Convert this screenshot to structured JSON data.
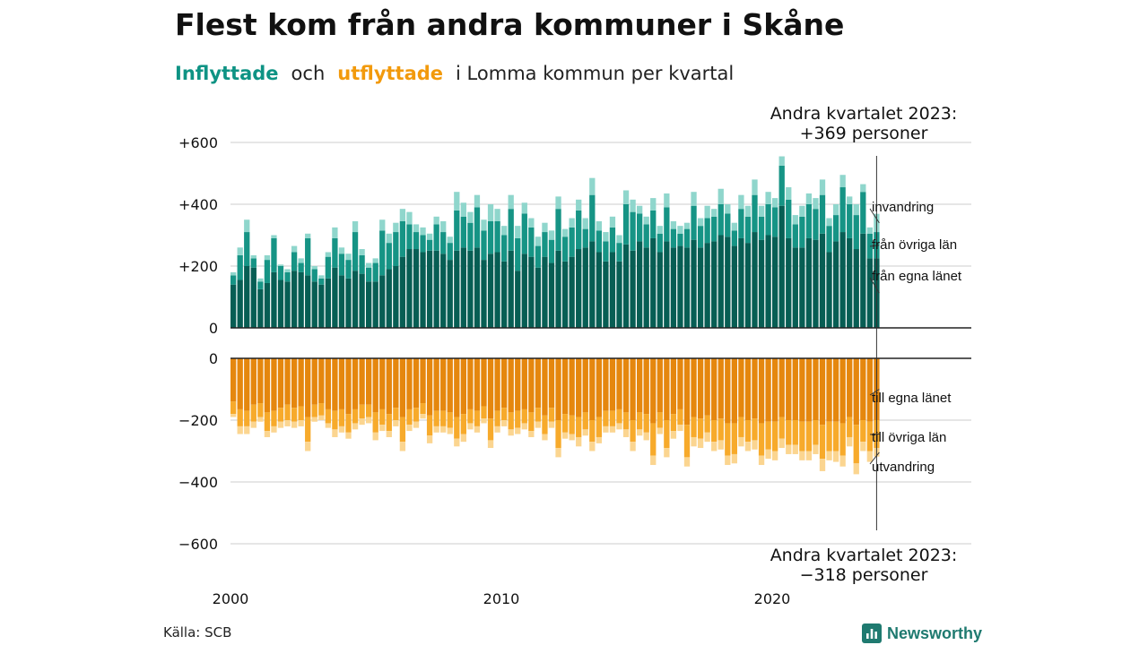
{
  "title": "Flest kom från andra kommuner i Skåne",
  "subtitle": {
    "part1": "Inflyttade",
    "part2": "och",
    "part3": "utflyttade",
    "part4": "i Lomma kommun per kvartal"
  },
  "source": "Källa: SCB",
  "brand": {
    "name": "Newsworthy"
  },
  "colors": {
    "in_own": "#075e54",
    "in_other": "#169485",
    "in_immig": "#8fd6cc",
    "out_own": "#e5870e",
    "out_other": "#f7aa2b",
    "out_emig": "#fbd590",
    "grid": "#dddddd",
    "axis": "#222222"
  },
  "chart_data": {
    "type": "bar",
    "stacked": true,
    "period": "quarter",
    "start": "2000 Q1",
    "end": "2023 Q2",
    "x_ticks": [
      "2000",
      "2010",
      "2020"
    ],
    "panels": [
      {
        "name": "inflyttade",
        "y_ticks": [
          "0",
          "+200",
          "+400",
          "+600"
        ],
        "ylim": [
          0,
          600
        ],
        "segment_labels": [
          "invandring",
          "från övriga län",
          "från egna länet"
        ],
        "callout": [
          "Andra kvartalet 2023:",
          "+369 personer"
        ],
        "totals": [
          180,
          260,
          350,
          235,
          160,
          235,
          300,
          205,
          190,
          265,
          225,
          305,
          200,
          170,
          245,
          325,
          260,
          240,
          345,
          255,
          210,
          225,
          350,
          305,
          340,
          385,
          375,
          335,
          325,
          305,
          360,
          345,
          295,
          440,
          405,
          375,
          430,
          350,
          400,
          385,
          330,
          430,
          330,
          405,
          355,
          295,
          340,
          315,
          425,
          320,
          355,
          415,
          355,
          485,
          345,
          310,
          360,
          300,
          445,
          415,
          395,
          360,
          420,
          330,
          435,
          345,
          330,
          340,
          440,
          355,
          395,
          385,
          450,
          400,
          340,
          430,
          395,
          480,
          395,
          440,
          420,
          555,
          455,
          365,
          395,
          435,
          420,
          480,
          355,
          400,
          495,
          425,
          400,
          465,
          325,
          369
        ],
        "from_own_county": [
          140,
          155,
          200,
          195,
          125,
          145,
          180,
          155,
          150,
          185,
          180,
          170,
          150,
          140,
          160,
          195,
          170,
          160,
          185,
          175,
          150,
          150,
          170,
          190,
          200,
          230,
          255,
          255,
          245,
          250,
          250,
          240,
          220,
          250,
          260,
          250,
          260,
          220,
          240,
          245,
          215,
          250,
          185,
          240,
          230,
          195,
          230,
          210,
          250,
          215,
          230,
          255,
          260,
          280,
          245,
          215,
          245,
          215,
          270,
          250,
          280,
          260,
          290,
          245,
          280,
          260,
          265,
          260,
          285,
          260,
          275,
          280,
          300,
          295,
          265,
          290,
          275,
          310,
          285,
          300,
          295,
          395,
          290,
          260,
          260,
          290,
          285,
          305,
          245,
          280,
          310,
          290,
          255,
          305,
          225,
          225
        ],
        "from_other_counties": [
          30,
          80,
          110,
          30,
          25,
          75,
          110,
          45,
          30,
          60,
          30,
          120,
          40,
          20,
          70,
          95,
          70,
          60,
          125,
          60,
          45,
          60,
          145,
          85,
          110,
          115,
          80,
          55,
          55,
          35,
          85,
          70,
          55,
          130,
          100,
          90,
          130,
          95,
          105,
          100,
          85,
          135,
          105,
          130,
          95,
          70,
          80,
          75,
          135,
          80,
          95,
          125,
          60,
          150,
          70,
          65,
          80,
          60,
          130,
          125,
          90,
          75,
          90,
          60,
          110,
          60,
          40,
          60,
          110,
          70,
          80,
          80,
          100,
          75,
          50,
          95,
          85,
          120,
          75,
          100,
          95,
          130,
          125,
          75,
          100,
          110,
          100,
          125,
          85,
          85,
          145,
          110,
          110,
          135,
          80,
          85
        ],
        "immigration": [
          10,
          25,
          40,
          10,
          10,
          15,
          10,
          5,
          10,
          20,
          15,
          15,
          10,
          10,
          15,
          35,
          20,
          20,
          35,
          20,
          15,
          15,
          35,
          30,
          30,
          40,
          40,
          25,
          25,
          20,
          25,
          35,
          20,
          60,
          45,
          35,
          40,
          35,
          55,
          40,
          30,
          45,
          40,
          35,
          30,
          30,
          30,
          30,
          40,
          25,
          30,
          35,
          35,
          55,
          30,
          30,
          35,
          25,
          45,
          40,
          25,
          25,
          40,
          25,
          45,
          25,
          25,
          20,
          45,
          25,
          40,
          25,
          50,
          30,
          25,
          45,
          35,
          50,
          35,
          40,
          30,
          30,
          40,
          30,
          35,
          35,
          35,
          50,
          25,
          35,
          40,
          25,
          35,
          25,
          20,
          59
        ]
      },
      {
        "name": "utflyttade",
        "y_ticks": [
          "0",
          "−200",
          "−400",
          "−600"
        ],
        "ylim": [
          -600,
          0
        ],
        "segment_labels": [
          "till egna länet",
          "till övriga län",
          "utvandring"
        ],
        "callout": [
          "Andra kvartalet 2023:",
          "−318 personer"
        ],
        "totals": [
          190,
          245,
          245,
          225,
          205,
          255,
          240,
          225,
          220,
          225,
          220,
          300,
          205,
          200,
          225,
          255,
          240,
          260,
          230,
          215,
          210,
          265,
          235,
          255,
          220,
          300,
          235,
          225,
          195,
          275,
          240,
          240,
          245,
          285,
          270,
          230,
          240,
          210,
          290,
          240,
          220,
          250,
          245,
          230,
          255,
          225,
          265,
          225,
          320,
          260,
          265,
          285,
          250,
          300,
          275,
          240,
          240,
          230,
          255,
          300,
          250,
          265,
          345,
          245,
          320,
          260,
          235,
          350,
          285,
          290,
          270,
          300,
          295,
          345,
          340,
          285,
          300,
          295,
          345,
          325,
          330,
          290,
          310,
          310,
          330,
          330,
          310,
          365,
          330,
          335,
          350,
          285,
          375,
          300,
          335,
          318
        ],
        "to_own_county": [
          140,
          165,
          170,
          150,
          145,
          175,
          170,
          160,
          150,
          160,
          155,
          190,
          150,
          145,
          165,
          170,
          165,
          180,
          165,
          150,
          150,
          175,
          165,
          180,
          160,
          190,
          165,
          160,
          145,
          185,
          170,
          170,
          175,
          190,
          180,
          165,
          170,
          155,
          195,
          170,
          160,
          175,
          170,
          165,
          175,
          160,
          185,
          160,
          200,
          180,
          185,
          190,
          175,
          200,
          190,
          170,
          170,
          165,
          175,
          200,
          175,
          180,
          210,
          175,
          200,
          180,
          165,
          215,
          190,
          195,
          185,
          200,
          195,
          210,
          210,
          190,
          200,
          195,
          210,
          205,
          205,
          190,
          200,
          200,
          205,
          205,
          200,
          215,
          205,
          205,
          210,
          190,
          215,
          200,
          205,
          200
        ],
        "to_other_counties": [
          40,
          55,
          50,
          55,
          45,
          60,
          50,
          45,
          50,
          45,
          45,
          80,
          40,
          40,
          45,
          60,
          55,
          60,
          45,
          45,
          40,
          65,
          50,
          55,
          40,
          80,
          50,
          45,
          35,
          65,
          50,
          50,
          50,
          70,
          65,
          45,
          50,
          40,
          70,
          50,
          40,
          55,
          55,
          45,
          60,
          45,
          60,
          45,
          90,
          60,
          60,
          65,
          55,
          70,
          65,
          50,
          50,
          45,
          55,
          70,
          55,
          60,
          105,
          50,
          90,
          55,
          50,
          105,
          65,
          65,
          55,
          70,
          70,
          105,
          100,
          65,
          70,
          70,
          105,
          90,
          95,
          70,
          80,
          80,
          95,
          95,
          80,
          110,
          95,
          95,
          105,
          65,
          125,
          70,
          95,
          90
        ],
        "emigration": [
          10,
          25,
          25,
          20,
          15,
          20,
          20,
          20,
          20,
          20,
          20,
          30,
          15,
          15,
          15,
          25,
          20,
          20,
          20,
          20,
          20,
          25,
          20,
          20,
          20,
          30,
          20,
          20,
          15,
          25,
          20,
          20,
          20,
          25,
          25,
          20,
          20,
          15,
          25,
          20,
          20,
          20,
          20,
          20,
          20,
          20,
          20,
          20,
          30,
          20,
          20,
          30,
          20,
          30,
          20,
          20,
          20,
          20,
          25,
          30,
          20,
          25,
          30,
          20,
          30,
          25,
          20,
          30,
          30,
          30,
          30,
          30,
          30,
          30,
          30,
          30,
          30,
          30,
          30,
          30,
          30,
          30,
          30,
          30,
          30,
          30,
          30,
          40,
          30,
          35,
          35,
          30,
          35,
          30,
          35,
          28
        ]
      }
    ]
  }
}
